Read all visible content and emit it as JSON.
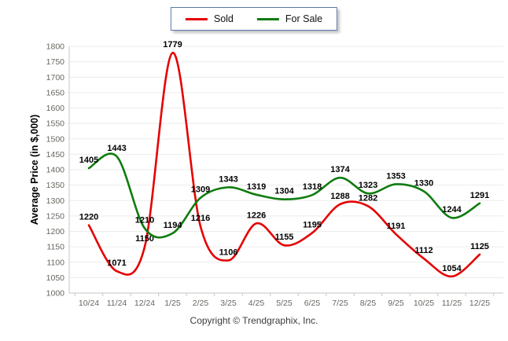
{
  "footer": {
    "text": "Copyright © Trendgraphix, Inc."
  },
  "legend": {
    "items": [
      {
        "label": "Sold",
        "color": "#e60000"
      },
      {
        "label": "For Sale",
        "color": "#0e7c0e"
      }
    ]
  },
  "chart_data": {
    "type": "line",
    "title": "",
    "xlabel": "",
    "ylabel": "Average Price (in $,000)",
    "x": [
      "10/24",
      "11/24",
      "12/24",
      "1/25",
      "2/25",
      "3/25",
      "4/25",
      "5/25",
      "6/25",
      "7/25",
      "8/25",
      "9/25",
      "10/25",
      "11/25",
      "12/25"
    ],
    "series": [
      {
        "name": "Sold",
        "color": "#e60000",
        "values": [
          1220,
          1071,
          1150,
          1779,
          1216,
          1106,
          1226,
          1155,
          1195,
          1288,
          1282,
          1191,
          1112,
          1054,
          1125
        ]
      },
      {
        "name": "For Sale",
        "color": "#0e7c0e",
        "values": [
          1405,
          1443,
          1210,
          1194,
          1309,
          1343,
          1319,
          1304,
          1318,
          1374,
          1323,
          1353,
          1330,
          1244,
          1291
        ]
      }
    ],
    "ylim": [
      1000,
      1800
    ],
    "ytick_step": 50,
    "grid": true,
    "smooth": true,
    "data_labels": true,
    "legend_position": "top-center",
    "tick_color": "#666660",
    "grid_color": "#ececec",
    "axis_color": "#c6c6c6",
    "label_color": "#000000"
  }
}
